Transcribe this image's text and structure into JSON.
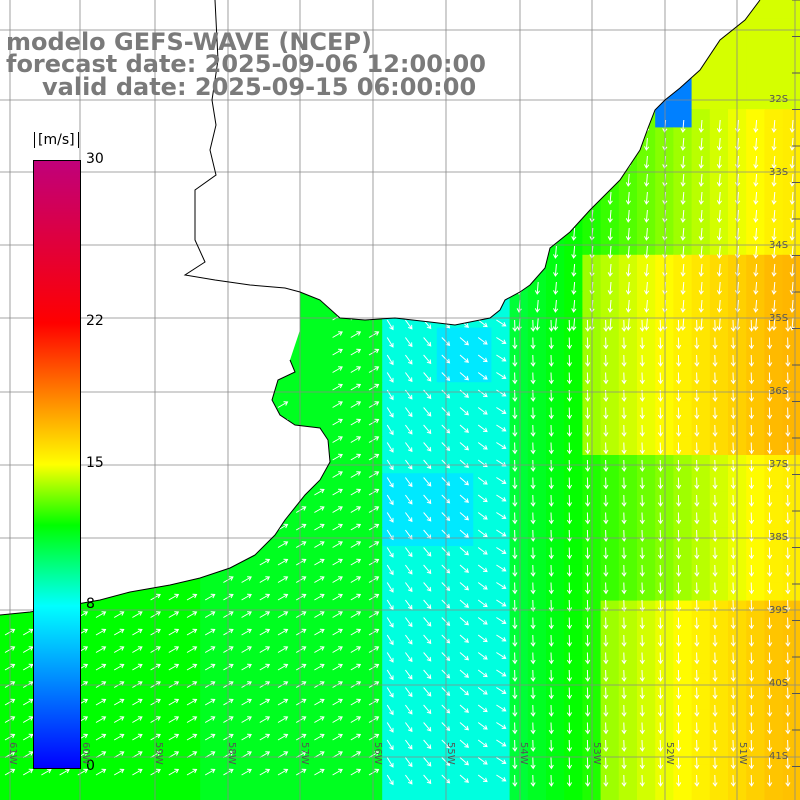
{
  "title": {
    "line1": "modelo GEFS-WAVE (NCEP)",
    "line2": "forecast date: 2025-09-06 12:00:00",
    "line3": "valid date: 2025-09-15 06:00:00"
  },
  "colorbar": {
    "unit": "[m/s]",
    "ticks": [
      "30",
      "22",
      "15",
      "8",
      "0"
    ],
    "tick_values": [
      30,
      22,
      15,
      8,
      0
    ],
    "stops": [
      {
        "v": 0,
        "color": "#0000ff"
      },
      {
        "v": 8,
        "color": "#00ffff"
      },
      {
        "v": 12,
        "color": "#00ff00"
      },
      {
        "v": 15,
        "color": "#ffff00"
      },
      {
        "v": 22,
        "color": "#ff0000"
      },
      {
        "v": 30,
        "color": "#c0007a"
      }
    ]
  },
  "lat_labels": [
    "32S",
    "33S",
    "34S",
    "35S",
    "36S",
    "37S",
    "38S",
    "39S",
    "40S",
    "41S"
  ],
  "lon_labels": [
    "61W",
    "60W",
    "59W",
    "58W",
    "57W",
    "56W",
    "55W",
    "54W",
    "53W",
    "52W",
    "51W"
  ],
  "colors": {
    "land": "#ffffff",
    "grid": "#888888",
    "coast": "#000000",
    "arrow": "#ffffff"
  }
}
